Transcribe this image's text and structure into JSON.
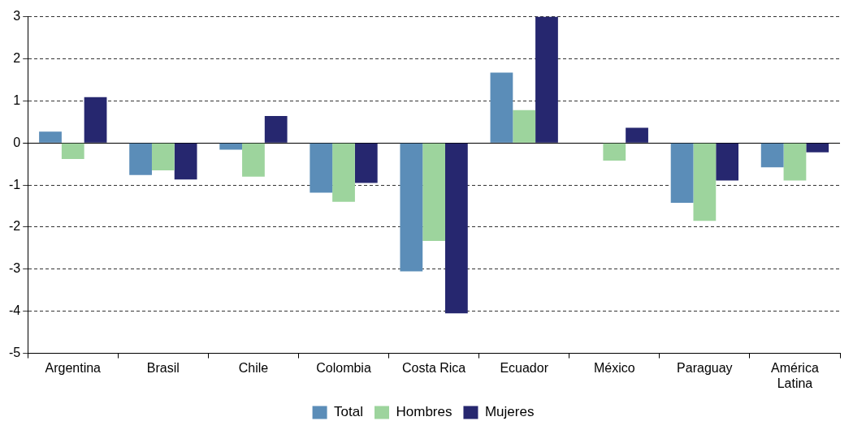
{
  "chart_data": {
    "type": "bar",
    "categories": [
      "Argentina",
      "Brasil",
      "Chile",
      "Colombia",
      "Costa Rica",
      "Ecuador",
      "México",
      "Paraguay",
      "América Latina"
    ],
    "series": [
      {
        "name": "Total",
        "color": "#5b8db8",
        "values": [
          0.27,
          -0.76,
          -0.16,
          -1.18,
          -3.05,
          1.67,
          null,
          -1.42,
          -0.58
        ]
      },
      {
        "name": "Hombres",
        "color": "#9dd49d",
        "values": [
          -0.38,
          -0.65,
          -0.8,
          -1.4,
          -2.33,
          0.78,
          -0.42,
          -1.85,
          -0.89
        ]
      },
      {
        "name": "Mujeres",
        "color": "#26276f",
        "values": [
          1.09,
          -0.87,
          0.64,
          -0.95,
          -4.05,
          3.0,
          0.36,
          -0.89,
          -0.22
        ]
      }
    ],
    "ylim": [
      -5,
      3
    ],
    "yticks": [
      -5,
      -4,
      -3,
      -2,
      -1,
      0,
      1,
      2,
      3
    ],
    "grid": "y",
    "legend": "bottom"
  }
}
